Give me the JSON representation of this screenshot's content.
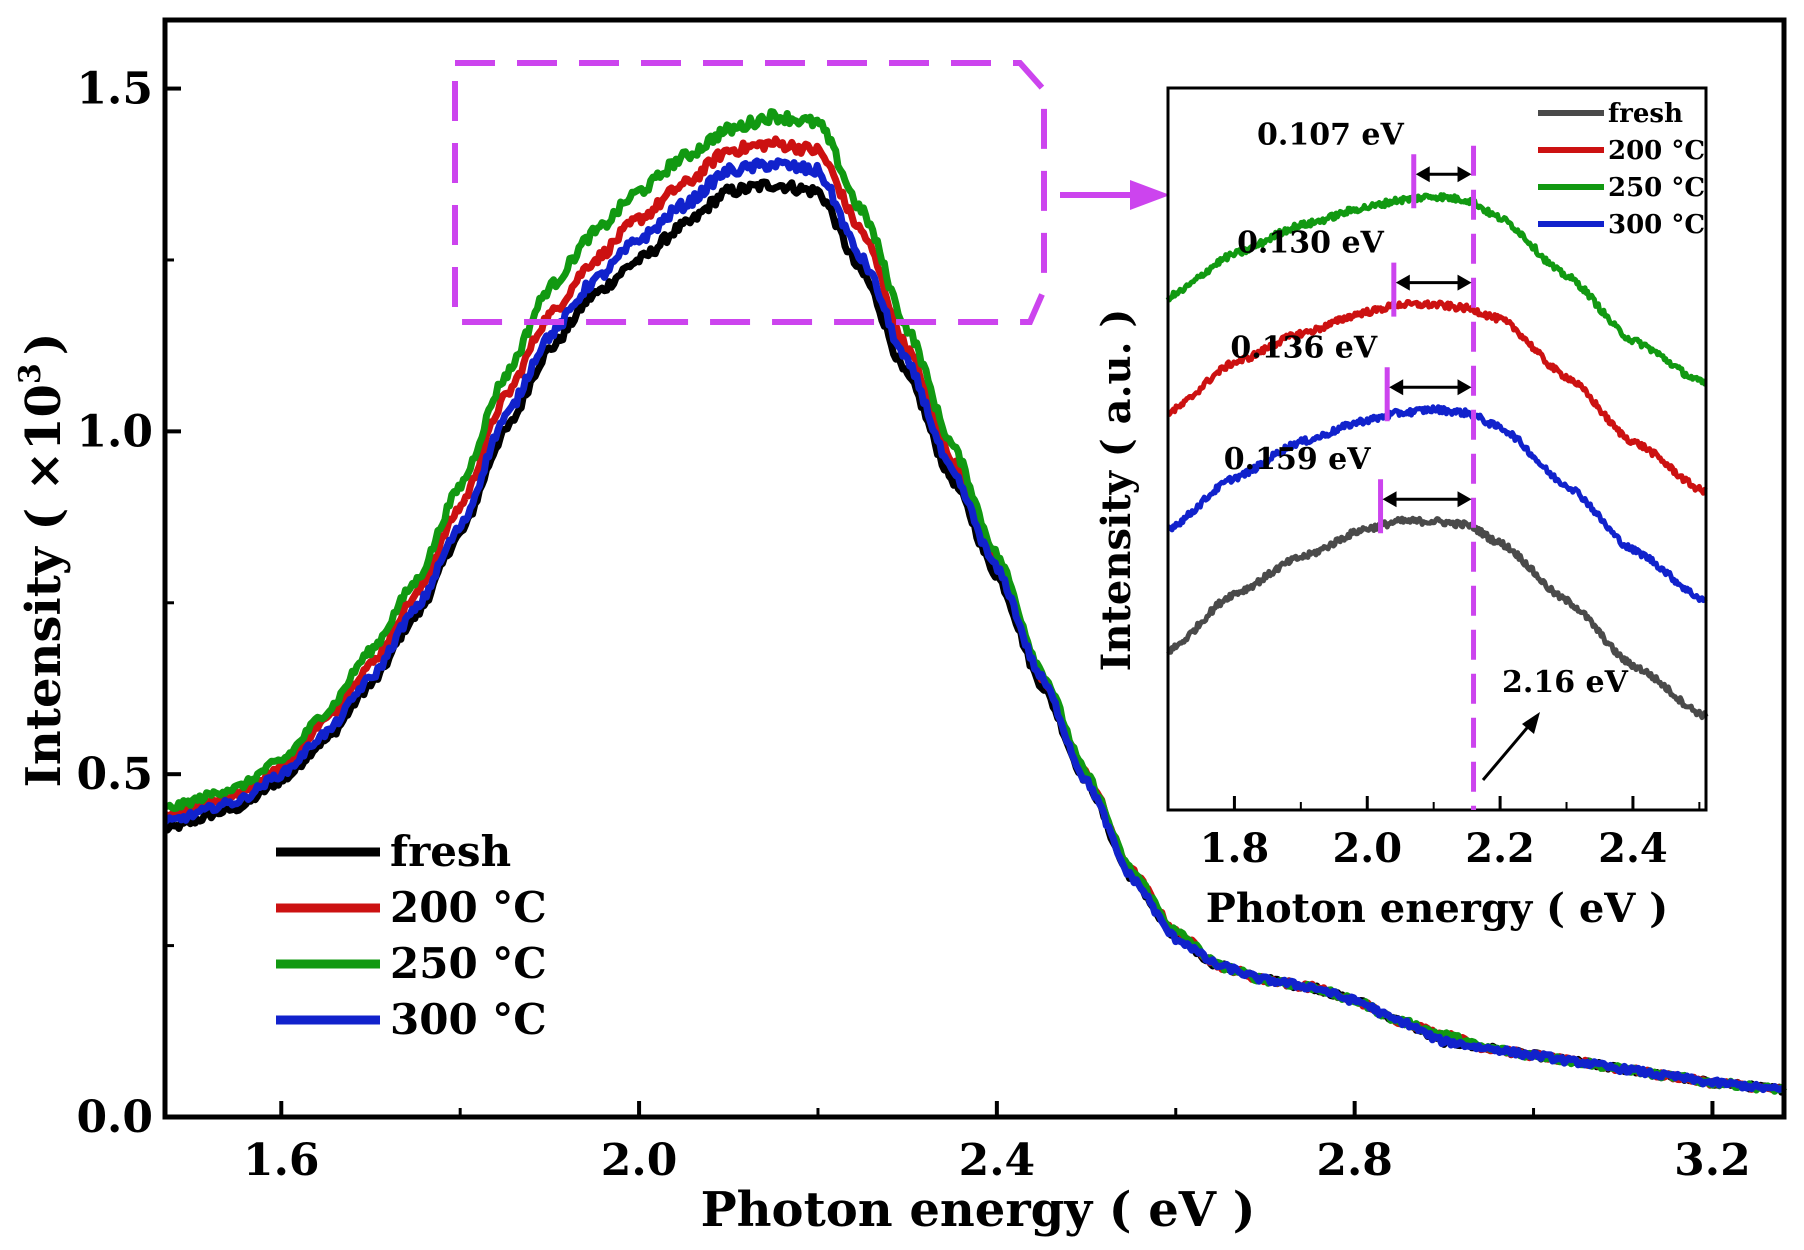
{
  "chart_data": [
    {
      "type": "line",
      "title": "",
      "xlabel": "Photon energy ( eV )",
      "ylabel_main": "Intensity ( ×10",
      "ylabel_sup": "3",
      "ylabel_end": ")",
      "xlim": [
        1.47,
        3.28
      ],
      "ylim": [
        0.0,
        1.6
      ],
      "xticks": [
        1.6,
        2.0,
        2.4,
        2.8,
        3.2
      ],
      "xtick_labels": [
        "1.6",
        "2.0",
        "2.4",
        "2.8",
        "3.2"
      ],
      "yticks": [
        0.0,
        0.5,
        1.0,
        1.5
      ],
      "ytick_labels": [
        "0.0",
        "0.5",
        "1.0",
        "1.5"
      ],
      "legend_position": "bottom-left",
      "x": [
        1.47,
        1.55,
        1.6,
        1.65,
        1.7,
        1.75,
        1.8,
        1.85,
        1.9,
        1.95,
        2.0,
        2.05,
        2.1,
        2.15,
        2.2,
        2.25,
        2.3,
        2.35,
        2.4,
        2.45,
        2.5,
        2.55,
        2.6,
        2.65,
        2.7,
        2.75,
        2.8,
        2.85,
        2.9,
        2.95,
        3.0,
        3.05,
        3.1,
        3.15,
        3.2,
        3.28
      ],
      "series": [
        {
          "name": "fresh",
          "color": "#000000",
          "values": [
            0.42,
            0.45,
            0.49,
            0.55,
            0.63,
            0.73,
            0.85,
            1.0,
            1.12,
            1.2,
            1.25,
            1.3,
            1.35,
            1.36,
            1.35,
            1.23,
            1.08,
            0.93,
            0.79,
            0.63,
            0.49,
            0.35,
            0.26,
            0.22,
            0.2,
            0.19,
            0.17,
            0.14,
            0.11,
            0.1,
            0.09,
            0.08,
            0.07,
            0.06,
            0.05,
            0.04
          ]
        },
        {
          "name": "200 °C",
          "color": "#cc1111",
          "values": [
            0.44,
            0.47,
            0.51,
            0.58,
            0.66,
            0.76,
            0.89,
            1.05,
            1.17,
            1.25,
            1.31,
            1.36,
            1.41,
            1.42,
            1.41,
            1.29,
            1.12,
            0.96,
            0.81,
            0.64,
            0.5,
            0.36,
            0.27,
            0.22,
            0.2,
            0.19,
            0.17,
            0.14,
            0.12,
            0.1,
            0.09,
            0.08,
            0.07,
            0.06,
            0.05,
            0.04
          ]
        },
        {
          "name": "250 °C",
          "color": "#119911",
          "values": [
            0.45,
            0.48,
            0.52,
            0.59,
            0.68,
            0.78,
            0.92,
            1.08,
            1.21,
            1.29,
            1.35,
            1.4,
            1.44,
            1.46,
            1.45,
            1.32,
            1.15,
            0.98,
            0.82,
            0.65,
            0.5,
            0.36,
            0.27,
            0.22,
            0.2,
            0.19,
            0.17,
            0.14,
            0.12,
            0.1,
            0.09,
            0.08,
            0.07,
            0.06,
            0.05,
            0.04
          ]
        },
        {
          "name": "300 °C",
          "color": "#1122cc",
          "values": [
            0.43,
            0.46,
            0.5,
            0.56,
            0.64,
            0.74,
            0.86,
            1.02,
            1.14,
            1.22,
            1.28,
            1.33,
            1.38,
            1.39,
            1.38,
            1.25,
            1.1,
            0.94,
            0.8,
            0.64,
            0.49,
            0.35,
            0.26,
            0.22,
            0.2,
            0.19,
            0.17,
            0.14,
            0.11,
            0.1,
            0.09,
            0.08,
            0.07,
            0.06,
            0.05,
            0.04
          ]
        }
      ],
      "zoom_box": {
        "x_range": [
          1.8,
          2.38
        ],
        "y_range": [
          1.16,
          1.54
        ]
      }
    },
    {
      "type": "line",
      "title": "",
      "xlabel": "Photon energy ( eV )",
      "ylabel": "Intensity ( a.u. )",
      "xlim": [
        1.7,
        2.51
      ],
      "ylim": [
        0,
        100
      ],
      "xticks": [
        1.8,
        2.0,
        2.2,
        2.4
      ],
      "xtick_labels": [
        "1.8",
        "2.0",
        "2.2",
        "2.4"
      ],
      "legend_position": "top-right",
      "x": [
        1.7,
        1.8,
        1.9,
        2.0,
        2.05,
        2.1,
        2.15,
        2.2,
        2.3,
        2.4,
        2.51
      ],
      "series": [
        {
          "name": "fresh",
          "color": "#4a4a4a",
          "values": [
            22,
            30,
            35,
            39,
            40,
            40,
            39.5,
            37,
            29,
            20,
            13
          ]
        },
        {
          "name": "200 °C",
          "color": "#cc1111",
          "values": [
            55,
            62,
            66,
            69,
            70,
            70,
            69.5,
            68,
            60,
            51,
            44
          ]
        },
        {
          "name": "250 °C",
          "color": "#119911",
          "values": [
            71,
            77,
            81,
            83.5,
            84.5,
            85,
            84.5,
            82,
            74,
            65,
            59
          ]
        },
        {
          "name": "300 °C",
          "color": "#1122cc",
          "values": [
            39,
            46,
            51,
            54,
            55,
            55.5,
            55,
            53,
            45,
            36,
            29
          ]
        }
      ],
      "reference_line": {
        "x": 2.16,
        "label": "2.16 eV"
      },
      "shift_annotations": [
        {
          "label": "0.107 eV",
          "from_x": 2.07,
          "to_x": 2.16,
          "series": "250 °C"
        },
        {
          "label": "0.130 eV",
          "from_x": 2.04,
          "to_x": 2.16,
          "series": "200 °C"
        },
        {
          "label": "0.136 eV",
          "from_x": 2.03,
          "to_x": 2.16,
          "series": "300 °C"
        },
        {
          "label": "0.159 eV",
          "from_x": 2.02,
          "to_x": 2.16,
          "series": "fresh"
        }
      ]
    }
  ]
}
